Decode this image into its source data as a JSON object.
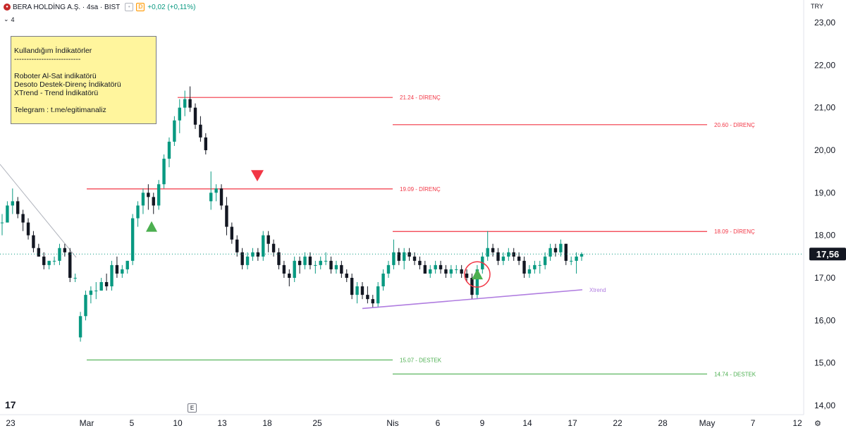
{
  "header": {
    "title": "BERA HOLDİNG A.Ş. · 4sa · BIST",
    "badge": "D",
    "change": "+0,02 (+0,11%)",
    "collapse_count": "4",
    "currency": "TRY",
    "logo_icon": "bera-logo-icon"
  },
  "note": {
    "heading": "Kullandığım İndikatörler",
    "divider": "---------------------------",
    "line1": "Roboter Al-Sat indikatörü",
    "line2": "Desoto Destek-Direnç İndikatörü",
    "line3": "XTrend - Trend İndikatörü",
    "telegram": "Telegram : t.me/egitimanaliz"
  },
  "footer": {
    "e_marker": "E",
    "tv_logo": "17"
  },
  "colors": {
    "up": "#089981",
    "down": "#131722",
    "resistance": "#f23645",
    "support": "#4caf50",
    "xtrend": "#b07de0",
    "buy": "#4caf50",
    "sell": "#f23645",
    "last_price_bg": "#131722"
  },
  "chart_data": {
    "type": "candlestick",
    "timeframe": "4sa",
    "ylim": [
      14,
      23.2
    ],
    "y_ticks": [
      "23,00",
      "22,00",
      "21,00",
      "20,00",
      "19,00",
      "18,00",
      "17,00",
      "16,00",
      "15,00",
      "14,00"
    ],
    "y_tick_values": [
      23,
      22,
      21,
      20,
      19,
      18,
      17,
      16,
      15,
      14
    ],
    "x_ticks": [
      "23",
      "Mar",
      "5",
      "10",
      "13",
      "18",
      "25",
      "Nis",
      "6",
      "9",
      "14",
      "17",
      "22",
      "28",
      "May",
      "7",
      "12"
    ],
    "last_price": "17,56",
    "last_price_value": 17.56,
    "levels": [
      {
        "label": "21.24 - DİRENÇ",
        "value": 21.24,
        "kind": "resistance",
        "from": "10",
        "to": "Nis"
      },
      {
        "label": "20.60 - DİRENÇ",
        "value": 20.6,
        "kind": "resistance",
        "from": "Nis",
        "to": "May"
      },
      {
        "label": "19.09 - DİRENÇ",
        "value": 19.09,
        "kind": "resistance",
        "from": "Mar",
        "to": "Nis"
      },
      {
        "label": "18.09 - DİRENÇ",
        "value": 18.09,
        "kind": "resistance",
        "from": "Nis",
        "to": "May"
      },
      {
        "label": "15.07 - DESTEK",
        "value": 15.07,
        "kind": "support",
        "from": "Mar",
        "to": "Nis"
      },
      {
        "label": "14.74 - DESTEK",
        "value": 14.74,
        "kind": "support",
        "from": "Nis",
        "to": "May"
      }
    ],
    "trendline": {
      "label": "Xtrend",
      "start": 16.28,
      "end": 16.72
    },
    "signals": [
      {
        "type": "buy",
        "value": 18.2
      },
      {
        "type": "sell",
        "value": 19.4
      },
      {
        "type": "buy",
        "value": 17.08,
        "circled": true
      }
    ],
    "candles": [
      [
        18.3,
        18.5,
        18.0,
        18.3
      ],
      [
        18.3,
        18.8,
        18.3,
        18.7
      ],
      [
        18.7,
        19.1,
        18.5,
        18.8
      ],
      [
        18.8,
        18.9,
        18.4,
        18.5
      ],
      [
        18.5,
        18.6,
        18.1,
        18.3
      ],
      [
        18.3,
        18.4,
        17.9,
        18.0
      ],
      [
        18.0,
        18.1,
        17.6,
        17.7
      ],
      [
        17.7,
        17.8,
        17.5,
        17.5
      ],
      [
        17.5,
        17.6,
        17.2,
        17.3
      ],
      [
        17.3,
        17.4,
        17.2,
        17.4
      ],
      [
        17.4,
        17.5,
        17.3,
        17.4
      ],
      [
        17.4,
        17.8,
        17.3,
        17.7
      ],
      [
        17.7,
        17.8,
        17.5,
        17.6
      ],
      [
        17.6,
        17.7,
        16.9,
        17.0
      ],
      [
        17.0,
        17.1,
        16.9,
        17.0
      ],
      [
        15.6,
        16.2,
        15.5,
        16.1
      ],
      [
        16.1,
        16.7,
        16.0,
        16.6
      ],
      [
        16.6,
        16.8,
        16.4,
        16.7
      ],
      [
        16.7,
        16.9,
        16.5,
        16.7
      ],
      [
        16.7,
        17.0,
        16.7,
        16.9
      ],
      [
        16.9,
        17.1,
        16.7,
        16.8
      ],
      [
        16.8,
        17.4,
        16.7,
        17.3
      ],
      [
        17.3,
        17.5,
        17.0,
        17.1
      ],
      [
        17.1,
        17.3,
        17.0,
        17.2
      ],
      [
        17.2,
        17.4,
        17.1,
        17.4
      ],
      [
        17.4,
        18.5,
        17.3,
        18.4
      ],
      [
        18.4,
        18.8,
        18.2,
        18.7
      ],
      [
        18.7,
        19.1,
        18.5,
        19.0
      ],
      [
        19.0,
        19.2,
        18.6,
        18.9
      ],
      [
        18.9,
        19.0,
        18.5,
        18.7
      ],
      [
        18.7,
        19.3,
        18.6,
        19.2
      ],
      [
        19.2,
        19.9,
        19.1,
        19.8
      ],
      [
        19.8,
        20.3,
        19.6,
        20.2
      ],
      [
        20.2,
        20.8,
        20.1,
        20.7
      ],
      [
        20.7,
        21.2,
        20.4,
        21.0
      ],
      [
        21.0,
        21.4,
        20.8,
        21.2
      ],
      [
        21.2,
        21.5,
        20.9,
        21.0
      ],
      [
        21.0,
        21.1,
        20.5,
        20.6
      ],
      [
        20.6,
        20.8,
        20.2,
        20.3
      ],
      [
        20.3,
        20.4,
        19.9,
        20.0
      ],
      [
        18.8,
        19.5,
        18.6,
        19.0
      ],
      [
        19.0,
        19.2,
        18.8,
        19.1
      ],
      [
        19.1,
        19.2,
        18.6,
        18.7
      ],
      [
        18.7,
        18.9,
        18.0,
        18.2
      ],
      [
        18.2,
        18.3,
        17.8,
        17.9
      ],
      [
        17.9,
        18.0,
        17.5,
        17.6
      ],
      [
        17.6,
        17.7,
        17.2,
        17.3
      ],
      [
        17.3,
        17.6,
        17.2,
        17.5
      ],
      [
        17.5,
        17.7,
        17.4,
        17.6
      ],
      [
        17.6,
        17.7,
        17.4,
        17.5
      ],
      [
        17.5,
        18.1,
        17.4,
        18.0
      ],
      [
        18.0,
        18.1,
        17.6,
        17.8
      ],
      [
        17.8,
        17.9,
        17.5,
        17.6
      ],
      [
        17.6,
        17.7,
        17.2,
        17.3
      ],
      [
        17.3,
        17.4,
        17.0,
        17.1
      ],
      [
        17.1,
        17.2,
        16.8,
        17.0
      ],
      [
        17.0,
        17.5,
        16.9,
        17.4
      ],
      [
        17.4,
        17.5,
        17.1,
        17.3
      ],
      [
        17.3,
        17.6,
        17.2,
        17.5
      ],
      [
        17.5,
        17.6,
        17.2,
        17.3
      ],
      [
        17.3,
        17.4,
        17.1,
        17.3
      ],
      [
        17.3,
        17.5,
        17.2,
        17.4
      ],
      [
        17.4,
        17.6,
        17.3,
        17.4
      ],
      [
        17.4,
        17.5,
        17.1,
        17.2
      ],
      [
        17.2,
        17.4,
        17.1,
        17.3
      ],
      [
        17.3,
        17.4,
        17.0,
        17.1
      ],
      [
        17.1,
        17.2,
        16.9,
        17.0
      ],
      [
        17.0,
        17.1,
        16.5,
        16.6
      ],
      [
        16.6,
        16.9,
        16.4,
        16.8
      ],
      [
        16.8,
        16.9,
        16.5,
        16.6
      ],
      [
        16.6,
        16.8,
        16.4,
        16.5
      ],
      [
        16.5,
        16.6,
        16.3,
        16.4
      ],
      [
        16.4,
        16.9,
        16.3,
        16.8
      ],
      [
        16.8,
        17.2,
        16.7,
        17.1
      ],
      [
        17.1,
        17.4,
        17.0,
        17.3
      ],
      [
        17.3,
        17.9,
        17.2,
        17.6
      ],
      [
        17.6,
        17.7,
        17.3,
        17.4
      ],
      [
        17.4,
        17.7,
        17.2,
        17.6
      ],
      [
        17.6,
        17.7,
        17.4,
        17.5
      ],
      [
        17.5,
        17.6,
        17.3,
        17.4
      ],
      [
        17.4,
        17.5,
        17.2,
        17.3
      ],
      [
        17.3,
        17.4,
        17.1,
        17.1
      ],
      [
        17.1,
        17.3,
        17.0,
        17.2
      ],
      [
        17.2,
        17.4,
        17.1,
        17.3
      ],
      [
        17.3,
        17.4,
        17.1,
        17.2
      ],
      [
        17.2,
        17.3,
        17.0,
        17.1
      ],
      [
        17.1,
        17.3,
        17.0,
        17.2
      ],
      [
        17.2,
        17.3,
        17.1,
        17.2
      ],
      [
        17.2,
        17.3,
        17.0,
        17.1
      ],
      [
        17.1,
        17.2,
        16.9,
        17.0
      ],
      [
        17.0,
        17.1,
        16.5,
        16.6
      ],
      [
        16.6,
        17.3,
        16.5,
        17.2
      ],
      [
        17.2,
        17.6,
        17.1,
        17.5
      ],
      [
        17.5,
        18.1,
        17.4,
        17.7
      ],
      [
        17.7,
        17.8,
        17.5,
        17.6
      ],
      [
        17.6,
        17.7,
        17.3,
        17.4
      ],
      [
        17.4,
        17.6,
        17.3,
        17.5
      ],
      [
        17.5,
        17.7,
        17.4,
        17.6
      ],
      [
        17.6,
        17.7,
        17.4,
        17.5
      ],
      [
        17.5,
        17.6,
        17.3,
        17.4
      ],
      [
        17.4,
        17.5,
        17.0,
        17.1
      ],
      [
        17.1,
        17.3,
        17.0,
        17.2
      ],
      [
        17.2,
        17.4,
        17.1,
        17.3
      ],
      [
        17.3,
        17.4,
        17.1,
        17.3
      ],
      [
        17.3,
        17.6,
        17.2,
        17.5
      ],
      [
        17.5,
        17.8,
        17.4,
        17.7
      ],
      [
        17.7,
        17.8,
        17.5,
        17.6
      ],
      [
        17.6,
        17.9,
        17.5,
        17.8
      ],
      [
        17.8,
        17.8,
        17.3,
        17.4
      ],
      [
        17.4,
        17.5,
        17.3,
        17.4
      ],
      [
        17.4,
        17.6,
        17.1,
        17.5
      ],
      [
        17.5,
        17.6,
        17.4,
        17.56
      ]
    ]
  }
}
